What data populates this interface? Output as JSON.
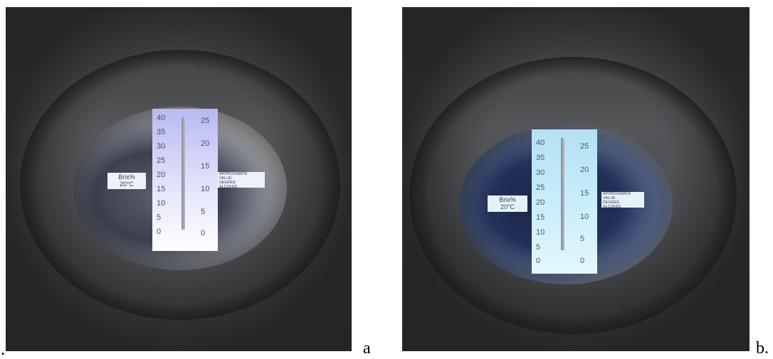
{
  "figure": {
    "leading_mark": ".",
    "panels": [
      {
        "label": "a",
        "brix_scale": [
          "40",
          "35",
          "30",
          "25",
          "20",
          "15",
          "10",
          "5",
          "0"
        ],
        "alcohol_scale": [
          "25",
          "20",
          "15",
          "10",
          "5",
          "0"
        ],
        "brix_tag_line1": "Brix%",
        "brix_tag_line2": "20°C",
        "alcohol_tag": [
          "APPROXIMATE",
          "VALUE",
          "DEGREE",
          "ALCOHOL"
        ]
      },
      {
        "label": "b.",
        "brix_scale": [
          "40",
          "35",
          "30",
          "25",
          "20",
          "15",
          "10",
          "5",
          "0"
        ],
        "alcohol_scale": [
          "25",
          "20",
          "15",
          "10",
          "5",
          "0"
        ],
        "brix_tag_line1": "Brix%",
        "brix_tag_line2": "20°C",
        "alcohol_tag": [
          "APPROXIMATE",
          "VALUE",
          "DEGREE",
          "ALCOHOL"
        ]
      }
    ]
  }
}
